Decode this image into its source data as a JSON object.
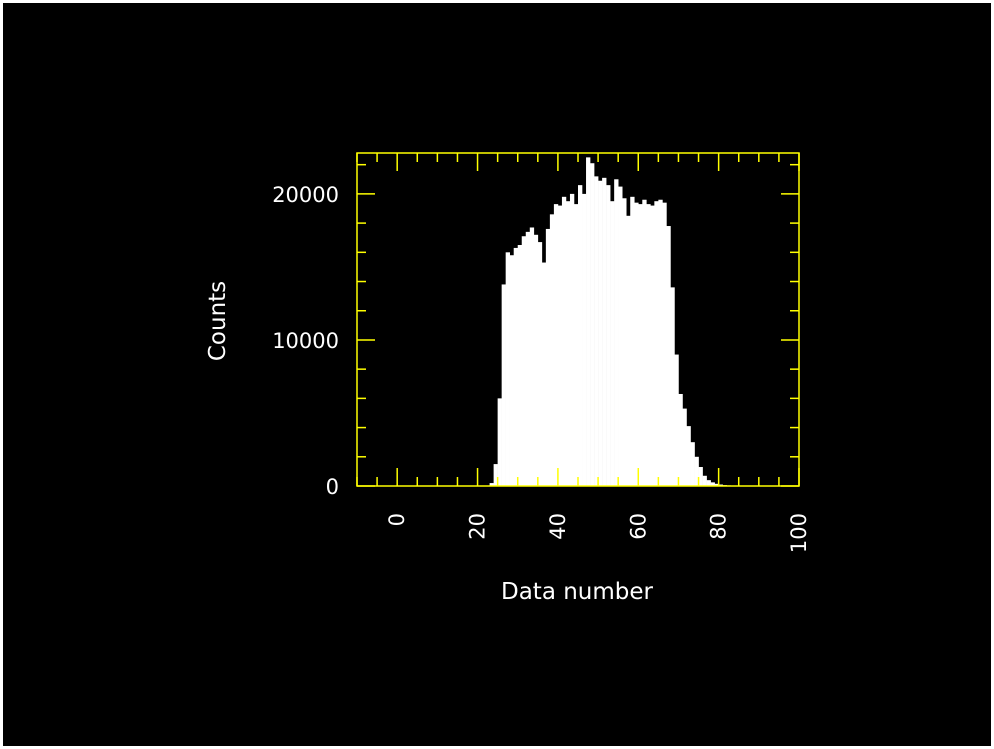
{
  "chart_data": {
    "type": "bar",
    "xlabel": "Data number",
    "ylabel": "Counts",
    "xlim": [
      -10,
      100
    ],
    "ylim": [
      0,
      22800
    ],
    "x_ticks": [
      0,
      20,
      40,
      60,
      80,
      100
    ],
    "y_ticks": [
      0,
      10000,
      20000
    ],
    "bin_width": 1,
    "x": [
      23,
      24,
      25,
      26,
      27,
      28,
      29,
      30,
      31,
      32,
      33,
      34,
      35,
      36,
      37,
      38,
      39,
      40,
      41,
      42,
      43,
      44,
      45,
      46,
      47,
      48,
      49,
      50,
      51,
      52,
      53,
      54,
      55,
      56,
      57,
      58,
      59,
      60,
      61,
      62,
      63,
      64,
      65,
      66,
      67,
      68,
      69,
      70,
      71,
      72,
      73,
      74,
      75,
      76,
      77,
      78,
      79,
      80,
      81,
      82,
      83,
      84,
      85,
      86,
      87,
      88,
      89
    ],
    "values": [
      200,
      1500,
      6000,
      13800,
      16000,
      15800,
      16300,
      16500,
      17100,
      17400,
      17700,
      17200,
      16700,
      15300,
      17600,
      18600,
      19300,
      19200,
      19800,
      19500,
      20000,
      19300,
      20600,
      20000,
      22500,
      22100,
      21200,
      20900,
      21100,
      20600,
      19500,
      21000,
      20500,
      19700,
      18500,
      19800,
      19400,
      19300,
      19600,
      19300,
      19200,
      19500,
      19600,
      19400,
      17800,
      13600,
      9000,
      6300,
      5300,
      4100,
      3000,
      2000,
      1300,
      700,
      400,
      250,
      150,
      100,
      60,
      40,
      20,
      10,
      5,
      0,
      0,
      0,
      0
    ],
    "axis_color": "#ffff00",
    "bar_color": "#ffffff",
    "background": "#000000"
  }
}
